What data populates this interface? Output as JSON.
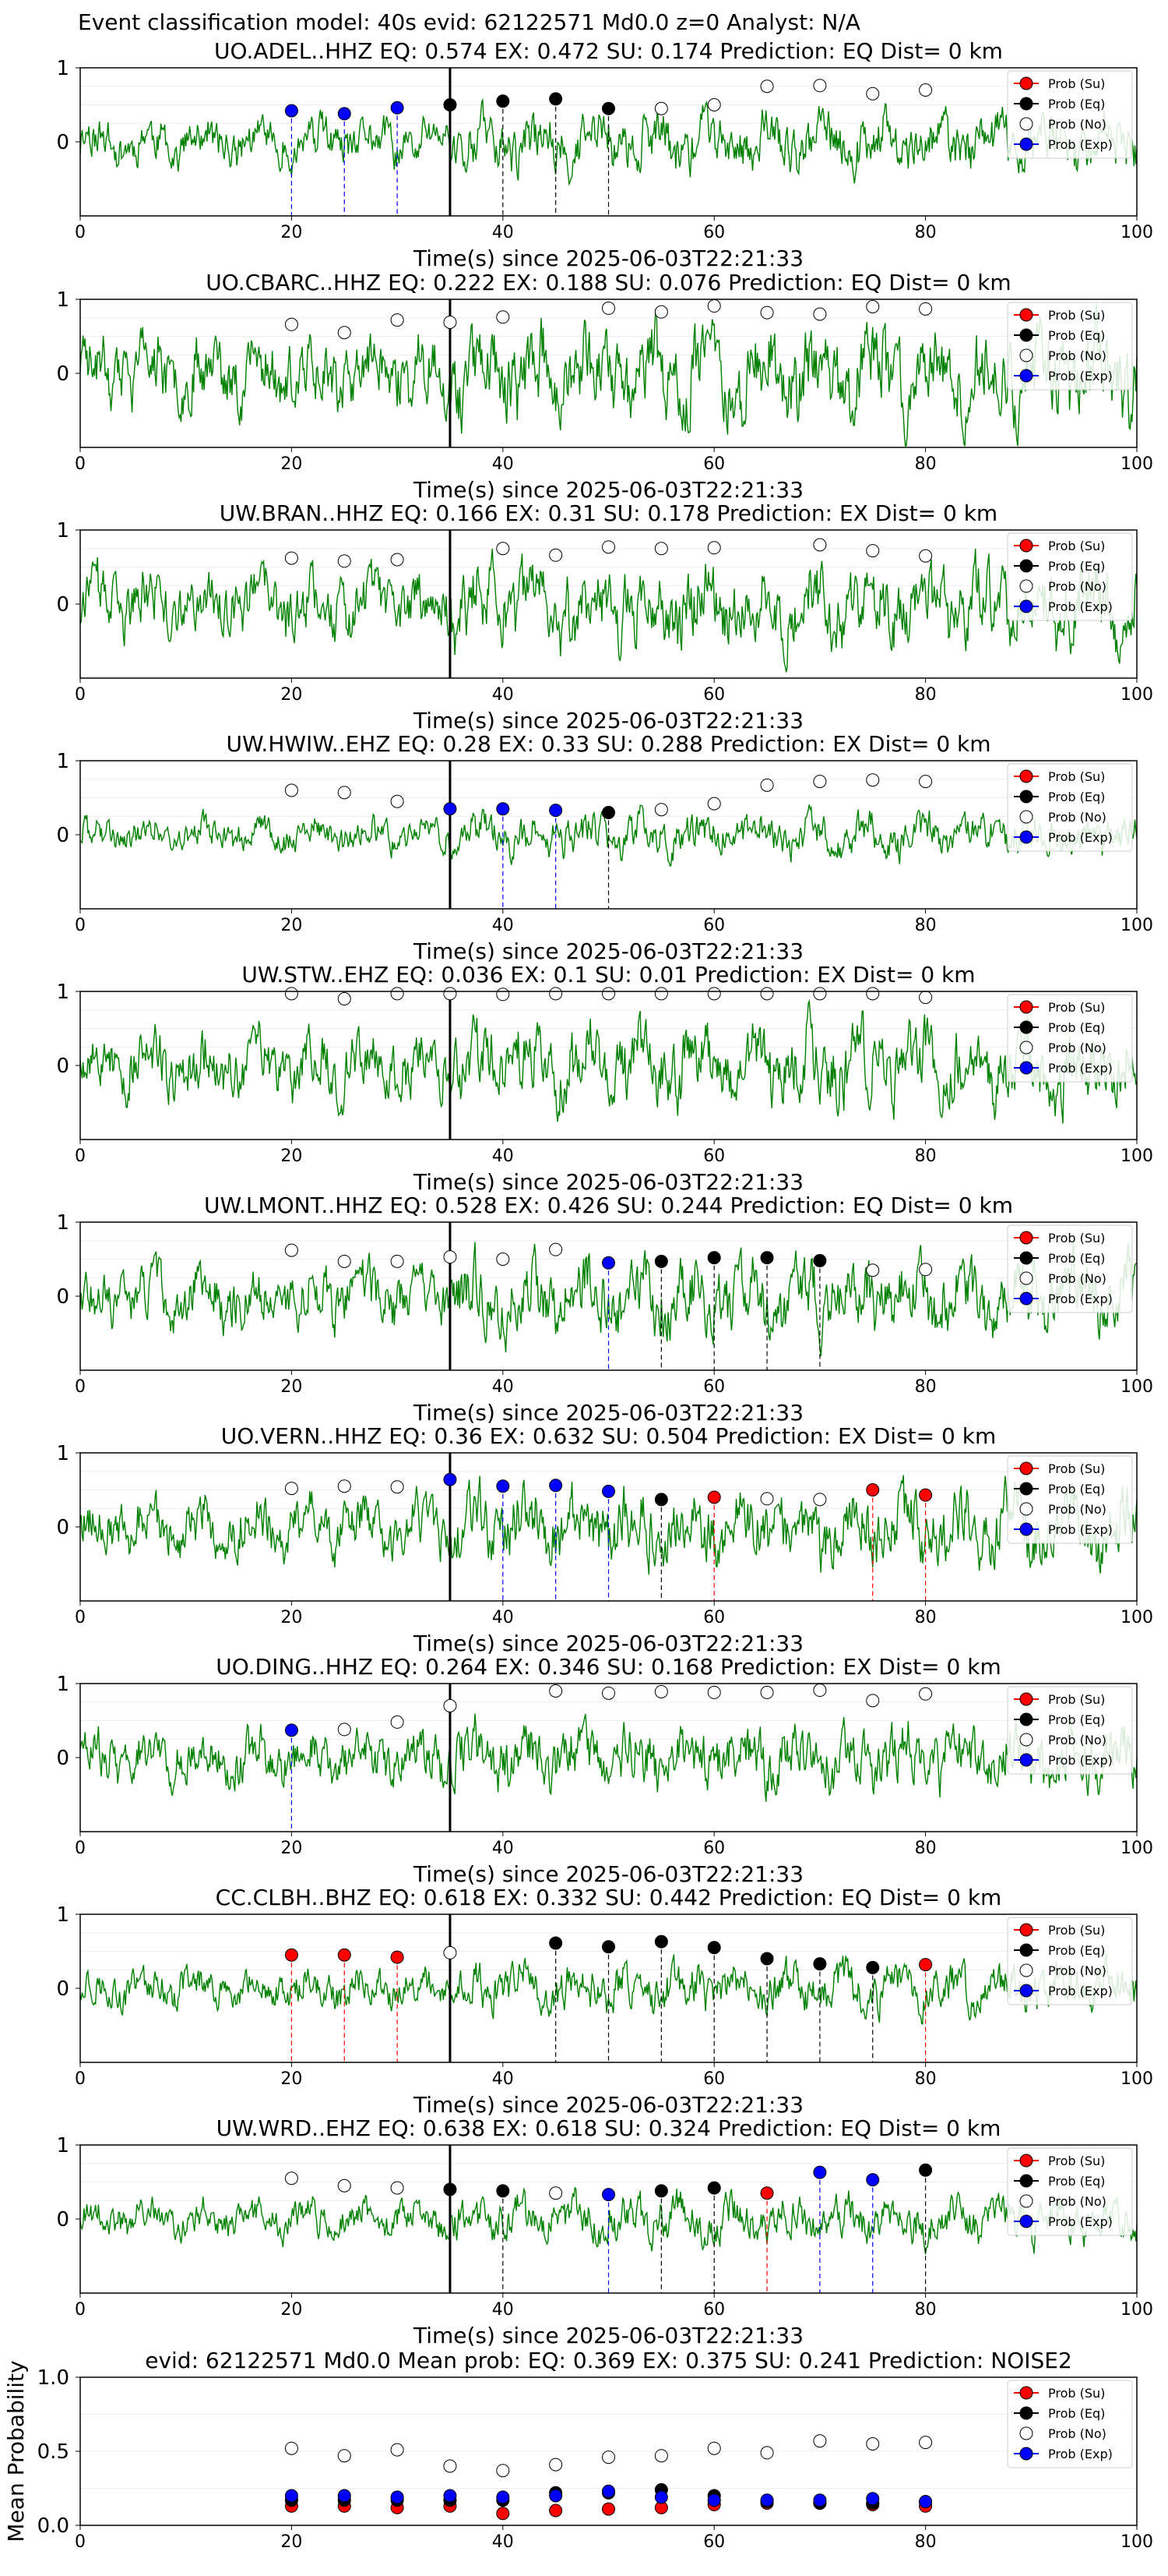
{
  "suptitle": "Event classification model: 40s evid: 62122571 Md0.0 z=0 Analyst: N/A",
  "colors": {
    "trace": "#008000",
    "su": "#ff0000",
    "eq": "#000000",
    "no": "#ffffff",
    "exp": "#0000ff",
    "pick": "#000000"
  },
  "legend": [
    "Prob (Su)",
    "Prob (Eq)",
    "Prob (No)",
    "Prob (Exp)"
  ],
  "times": [
    20,
    25,
    30,
    35,
    40,
    45,
    50,
    55,
    60,
    65,
    70,
    75,
    80
  ],
  "chart_data": [
    {
      "type": "line",
      "title": "UO.ADEL..HHZ   EQ: 0.574   EX: 0.472   SU: 0.174   Prediction: EQ    Dist= 0 km",
      "xlabel": "Time(s) since 2025-06-03T22:21:33",
      "xlim": [
        0,
        100
      ],
      "ylim": [
        -1,
        1
      ],
      "xticks": [
        "0",
        "20",
        "40",
        "60",
        "80",
        "100"
      ],
      "yticks": [
        "1",
        "0"
      ],
      "noise_amp": 0.35,
      "seed": 11,
      "pick_time": 35,
      "points": [
        {
          "t": 20,
          "cls": "exp",
          "p": 0.42
        },
        {
          "t": 25,
          "cls": "exp",
          "p": 0.38
        },
        {
          "t": 30,
          "cls": "exp",
          "p": 0.46
        },
        {
          "t": 35,
          "cls": "eq",
          "p": 0.5
        },
        {
          "t": 40,
          "cls": "eq",
          "p": 0.55
        },
        {
          "t": 45,
          "cls": "eq",
          "p": 0.58
        },
        {
          "t": 50,
          "cls": "eq",
          "p": 0.45
        },
        {
          "t": 55,
          "cls": "no",
          "p": 0.45
        },
        {
          "t": 60,
          "cls": "no",
          "p": 0.5
        },
        {
          "t": 65,
          "cls": "no",
          "p": 0.75
        },
        {
          "t": 70,
          "cls": "no",
          "p": 0.76
        },
        {
          "t": 75,
          "cls": "no",
          "p": 0.65
        },
        {
          "t": 80,
          "cls": "no",
          "p": 0.7
        }
      ]
    },
    {
      "type": "line",
      "title": "UO.CBARC..HHZ   EQ: 0.222   EX: 0.188   SU: 0.076   Prediction: EQ    Dist= 0 km",
      "xlabel": "Time(s) since 2025-06-03T22:21:33",
      "xlim": [
        0,
        100
      ],
      "ylim": [
        -1,
        1
      ],
      "xticks": [
        "0",
        "20",
        "40",
        "60",
        "80",
        "100"
      ],
      "yticks": [
        "1",
        "0"
      ],
      "noise_amp": 0.55,
      "seed": 23,
      "pick_time": 35,
      "points": [
        {
          "t": 20,
          "cls": "no",
          "p": 0.66
        },
        {
          "t": 25,
          "cls": "no",
          "p": 0.55
        },
        {
          "t": 30,
          "cls": "no",
          "p": 0.72
        },
        {
          "t": 35,
          "cls": "no",
          "p": 0.69
        },
        {
          "t": 40,
          "cls": "no",
          "p": 0.76
        },
        {
          "t": 50,
          "cls": "no",
          "p": 0.88
        },
        {
          "t": 55,
          "cls": "no",
          "p": 0.83
        },
        {
          "t": 60,
          "cls": "no",
          "p": 0.91
        },
        {
          "t": 65,
          "cls": "no",
          "p": 0.82
        },
        {
          "t": 70,
          "cls": "no",
          "p": 0.8
        },
        {
          "t": 75,
          "cls": "no",
          "p": 0.9
        },
        {
          "t": 80,
          "cls": "no",
          "p": 0.87
        }
      ]
    },
    {
      "type": "line",
      "title": "UW.BRAN..HHZ   EQ: 0.166   EX: 0.31   SU: 0.178   Prediction: EX    Dist= 0 km",
      "xlabel": "Time(s) since 2025-06-03T22:21:33",
      "xlim": [
        0,
        100
      ],
      "ylim": [
        -1,
        1
      ],
      "xticks": [
        "0",
        "20",
        "40",
        "60",
        "80",
        "100"
      ],
      "yticks": [
        "1",
        "0"
      ],
      "noise_amp": 0.5,
      "seed": 37,
      "pick_time": 35,
      "points": [
        {
          "t": 20,
          "cls": "no",
          "p": 0.62
        },
        {
          "t": 25,
          "cls": "no",
          "p": 0.58
        },
        {
          "t": 30,
          "cls": "no",
          "p": 0.6
        },
        {
          "t": 40,
          "cls": "no",
          "p": 0.75
        },
        {
          "t": 45,
          "cls": "no",
          "p": 0.66
        },
        {
          "t": 50,
          "cls": "no",
          "p": 0.77
        },
        {
          "t": 55,
          "cls": "no",
          "p": 0.75
        },
        {
          "t": 60,
          "cls": "no",
          "p": 0.76
        },
        {
          "t": 70,
          "cls": "no",
          "p": 0.8
        },
        {
          "t": 75,
          "cls": "no",
          "p": 0.72
        },
        {
          "t": 80,
          "cls": "no",
          "p": 0.65
        }
      ]
    },
    {
      "type": "line",
      "title": "UW.HWIW..EHZ   EQ: 0.28   EX: 0.33   SU: 0.288   Prediction: EX    Dist= 0 km",
      "xlabel": "Time(s) since 2025-06-03T22:21:33",
      "xlim": [
        0,
        100
      ],
      "ylim": [
        -1,
        1
      ],
      "xticks": [
        "0",
        "20",
        "40",
        "60",
        "80",
        "100"
      ],
      "yticks": [
        "1",
        "0"
      ],
      "noise_amp": 0.25,
      "seed": 41,
      "pick_time": 35,
      "points": [
        {
          "t": 20,
          "cls": "no",
          "p": 0.6
        },
        {
          "t": 25,
          "cls": "no",
          "p": 0.57
        },
        {
          "t": 30,
          "cls": "no",
          "p": 0.45
        },
        {
          "t": 35,
          "cls": "exp",
          "p": 0.35
        },
        {
          "t": 40,
          "cls": "exp",
          "p": 0.35
        },
        {
          "t": 45,
          "cls": "exp",
          "p": 0.33
        },
        {
          "t": 50,
          "cls": "eq",
          "p": 0.3
        },
        {
          "t": 55,
          "cls": "no",
          "p": 0.34
        },
        {
          "t": 60,
          "cls": "no",
          "p": 0.42
        },
        {
          "t": 65,
          "cls": "no",
          "p": 0.67
        },
        {
          "t": 70,
          "cls": "no",
          "p": 0.72
        },
        {
          "t": 75,
          "cls": "no",
          "p": 0.74
        },
        {
          "t": 80,
          "cls": "no",
          "p": 0.72
        }
      ]
    },
    {
      "type": "line",
      "title": "UW.STW..EHZ   EQ: 0.036   EX: 0.1   SU: 0.01   Prediction: EX    Dist= 0 km",
      "xlabel": "Time(s) since 2025-06-03T22:21:33",
      "xlim": [
        0,
        100
      ],
      "ylim": [
        -1,
        1
      ],
      "xticks": [
        "0",
        "20",
        "40",
        "60",
        "80",
        "100"
      ],
      "yticks": [
        "1",
        "0"
      ],
      "noise_amp": 0.5,
      "seed": 53,
      "pick_time": 35,
      "points": [
        {
          "t": 20,
          "cls": "no",
          "p": 0.97
        },
        {
          "t": 25,
          "cls": "no",
          "p": 0.9
        },
        {
          "t": 30,
          "cls": "no",
          "p": 0.97
        },
        {
          "t": 35,
          "cls": "no",
          "p": 0.97
        },
        {
          "t": 40,
          "cls": "no",
          "p": 0.96
        },
        {
          "t": 45,
          "cls": "no",
          "p": 0.97
        },
        {
          "t": 50,
          "cls": "no",
          "p": 0.97
        },
        {
          "t": 55,
          "cls": "no",
          "p": 0.97
        },
        {
          "t": 60,
          "cls": "no",
          "p": 0.97
        },
        {
          "t": 65,
          "cls": "no",
          "p": 0.97
        },
        {
          "t": 70,
          "cls": "no",
          "p": 0.97
        },
        {
          "t": 75,
          "cls": "no",
          "p": 0.97
        },
        {
          "t": 80,
          "cls": "no",
          "p": 0.92
        }
      ]
    },
    {
      "type": "line",
      "title": "UW.LMONT..HHZ   EQ: 0.528   EX: 0.426   SU: 0.244   Prediction: EQ    Dist= 0 km",
      "xlabel": "Time(s) since 2025-06-03T22:21:33",
      "xlim": [
        0,
        100
      ],
      "ylim": [
        -1,
        1
      ],
      "xticks": [
        "0",
        "20",
        "40",
        "60",
        "80",
        "100"
      ],
      "yticks": [
        "1",
        "0"
      ],
      "noise_amp": 0.45,
      "seed": 67,
      "pick_time": 35,
      "points": [
        {
          "t": 20,
          "cls": "no",
          "p": 0.62
        },
        {
          "t": 25,
          "cls": "no",
          "p": 0.47
        },
        {
          "t": 30,
          "cls": "no",
          "p": 0.47
        },
        {
          "t": 35,
          "cls": "no",
          "p": 0.53
        },
        {
          "t": 40,
          "cls": "no",
          "p": 0.5
        },
        {
          "t": 45,
          "cls": "no",
          "p": 0.63
        },
        {
          "t": 50,
          "cls": "exp",
          "p": 0.45
        },
        {
          "t": 55,
          "cls": "eq",
          "p": 0.47
        },
        {
          "t": 60,
          "cls": "eq",
          "p": 0.52
        },
        {
          "t": 65,
          "cls": "eq",
          "p": 0.52
        },
        {
          "t": 70,
          "cls": "eq",
          "p": 0.48
        },
        {
          "t": 75,
          "cls": "no",
          "p": 0.35
        },
        {
          "t": 80,
          "cls": "no",
          "p": 0.36
        }
      ]
    },
    {
      "type": "line",
      "title": "UO.VERN..HHZ   EQ: 0.36   EX: 0.632   SU: 0.504   Prediction: EX    Dist= 0 km",
      "xlabel": "Time(s) since 2025-06-03T22:21:33",
      "xlim": [
        0,
        100
      ],
      "ylim": [
        -1,
        1
      ],
      "xticks": [
        "0",
        "20",
        "40",
        "60",
        "80",
        "100"
      ],
      "yticks": [
        "1",
        "0"
      ],
      "noise_amp": 0.45,
      "seed": 79,
      "pick_time": 35,
      "points": [
        {
          "t": 20,
          "cls": "no",
          "p": 0.52
        },
        {
          "t": 25,
          "cls": "no",
          "p": 0.55
        },
        {
          "t": 30,
          "cls": "no",
          "p": 0.54
        },
        {
          "t": 35,
          "cls": "exp",
          "p": 0.64
        },
        {
          "t": 40,
          "cls": "exp",
          "p": 0.55
        },
        {
          "t": 45,
          "cls": "exp",
          "p": 0.56
        },
        {
          "t": 50,
          "cls": "exp",
          "p": 0.48
        },
        {
          "t": 55,
          "cls": "eq",
          "p": 0.37
        },
        {
          "t": 60,
          "cls": "su",
          "p": 0.4
        },
        {
          "t": 65,
          "cls": "no",
          "p": 0.38
        },
        {
          "t": 70,
          "cls": "no",
          "p": 0.37
        },
        {
          "t": 75,
          "cls": "su",
          "p": 0.5
        },
        {
          "t": 80,
          "cls": "su",
          "p": 0.43
        }
      ]
    },
    {
      "type": "line",
      "title": "UO.DING..HHZ   EQ: 0.264   EX: 0.346   SU: 0.168   Prediction: EX    Dist= 0 km",
      "xlabel": "Time(s) since 2025-06-03T22:21:33",
      "xlim": [
        0,
        100
      ],
      "ylim": [
        -1,
        1
      ],
      "xticks": [
        "0",
        "20",
        "40",
        "60",
        "80",
        "100"
      ],
      "yticks": [
        "1",
        "0"
      ],
      "noise_amp": 0.4,
      "seed": 83,
      "pick_time": 35,
      "points": [
        {
          "t": 20,
          "cls": "exp",
          "p": 0.37
        },
        {
          "t": 25,
          "cls": "no",
          "p": 0.38
        },
        {
          "t": 30,
          "cls": "no",
          "p": 0.48
        },
        {
          "t": 35,
          "cls": "no",
          "p": 0.7
        },
        {
          "t": 45,
          "cls": "no",
          "p": 0.9
        },
        {
          "t": 50,
          "cls": "no",
          "p": 0.87
        },
        {
          "t": 55,
          "cls": "no",
          "p": 0.89
        },
        {
          "t": 60,
          "cls": "no",
          "p": 0.88
        },
        {
          "t": 65,
          "cls": "no",
          "p": 0.88
        },
        {
          "t": 70,
          "cls": "no",
          "p": 0.91
        },
        {
          "t": 75,
          "cls": "no",
          "p": 0.77
        },
        {
          "t": 80,
          "cls": "no",
          "p": 0.86
        }
      ]
    },
    {
      "type": "line",
      "title": "CC.CLBH..BHZ   EQ: 0.618   EX: 0.332   SU: 0.442   Prediction: EQ    Dist= 0 km",
      "xlabel": "Time(s) since 2025-06-03T22:21:33",
      "xlim": [
        0,
        100
      ],
      "ylim": [
        -1,
        1
      ],
      "xticks": [
        "0",
        "20",
        "40",
        "60",
        "80",
        "100"
      ],
      "yticks": [
        "1",
        "0"
      ],
      "noise_amp": 0.3,
      "seed": 97,
      "pick_time": 35,
      "points": [
        {
          "t": 20,
          "cls": "su",
          "p": 0.45
        },
        {
          "t": 25,
          "cls": "su",
          "p": 0.45
        },
        {
          "t": 30,
          "cls": "su",
          "p": 0.42
        },
        {
          "t": 35,
          "cls": "no",
          "p": 0.48
        },
        {
          "t": 45,
          "cls": "eq",
          "p": 0.61
        },
        {
          "t": 50,
          "cls": "eq",
          "p": 0.56
        },
        {
          "t": 55,
          "cls": "eq",
          "p": 0.63
        },
        {
          "t": 60,
          "cls": "eq",
          "p": 0.55
        },
        {
          "t": 65,
          "cls": "eq",
          "p": 0.4
        },
        {
          "t": 70,
          "cls": "eq",
          "p": 0.33
        },
        {
          "t": 75,
          "cls": "eq",
          "p": 0.28
        },
        {
          "t": 80,
          "cls": "su",
          "p": 0.32
        }
      ]
    },
    {
      "type": "line",
      "title": "UW.WRD..EHZ   EQ: 0.638   EX: 0.618   SU: 0.324   Prediction: EQ    Dist= 0 km",
      "xlabel": "Time(s) since 2025-06-03T22:21:33",
      "xlim": [
        0,
        100
      ],
      "ylim": [
        -1,
        1
      ],
      "xticks": [
        "0",
        "20",
        "40",
        "60",
        "80",
        "100"
      ],
      "yticks": [
        "1",
        "0"
      ],
      "noise_amp": 0.28,
      "seed": 101,
      "pick_time": 35,
      "points": [
        {
          "t": 20,
          "cls": "no",
          "p": 0.55
        },
        {
          "t": 25,
          "cls": "no",
          "p": 0.45
        },
        {
          "t": 30,
          "cls": "no",
          "p": 0.42
        },
        {
          "t": 35,
          "cls": "eq",
          "p": 0.4
        },
        {
          "t": 40,
          "cls": "eq",
          "p": 0.38
        },
        {
          "t": 45,
          "cls": "no",
          "p": 0.35
        },
        {
          "t": 50,
          "cls": "exp",
          "p": 0.33
        },
        {
          "t": 55,
          "cls": "eq",
          "p": 0.38
        },
        {
          "t": 60,
          "cls": "eq",
          "p": 0.42
        },
        {
          "t": 65,
          "cls": "su",
          "p": 0.35
        },
        {
          "t": 70,
          "cls": "exp",
          "p": 0.63
        },
        {
          "t": 75,
          "cls": "exp",
          "p": 0.53
        },
        {
          "t": 80,
          "cls": "eq",
          "p": 0.66
        }
      ]
    },
    {
      "type": "scatter",
      "title": "evid: 62122571   Md0.0   Mean prob:   EQ: 0.369   EX: 0.375   SU: 0.241   Prediction: NOISE2",
      "xlabel": "",
      "ylabel": "Mean Probability",
      "xlim": [
        0,
        100
      ],
      "ylim": [
        0,
        1
      ],
      "xticks": [
        "0",
        "20",
        "40",
        "60",
        "80",
        "100"
      ],
      "yticks": [
        "0.0",
        "0.5",
        "1.0"
      ],
      "series": [
        {
          "name": "Prob (Su)",
          "cls": "su",
          "values": [
            0.13,
            0.13,
            0.12,
            0.13,
            0.08,
            0.1,
            0.11,
            0.12,
            0.14,
            0.15,
            0.15,
            0.14,
            0.13
          ]
        },
        {
          "name": "Prob (Eq)",
          "cls": "eq",
          "values": [
            0.17,
            0.17,
            0.17,
            0.17,
            0.17,
            0.22,
            0.22,
            0.24,
            0.2,
            0.16,
            0.15,
            0.15,
            0.16
          ]
        },
        {
          "name": "Prob (No)",
          "cls": "no",
          "values": [
            0.52,
            0.47,
            0.51,
            0.4,
            0.37,
            0.41,
            0.46,
            0.47,
            0.52,
            0.49,
            0.57,
            0.55,
            0.56
          ]
        },
        {
          "name": "Prob (Exp)",
          "cls": "exp",
          "values": [
            0.2,
            0.2,
            0.19,
            0.2,
            0.19,
            0.2,
            0.23,
            0.19,
            0.17,
            0.17,
            0.17,
            0.18,
            0.16
          ]
        }
      ]
    }
  ]
}
